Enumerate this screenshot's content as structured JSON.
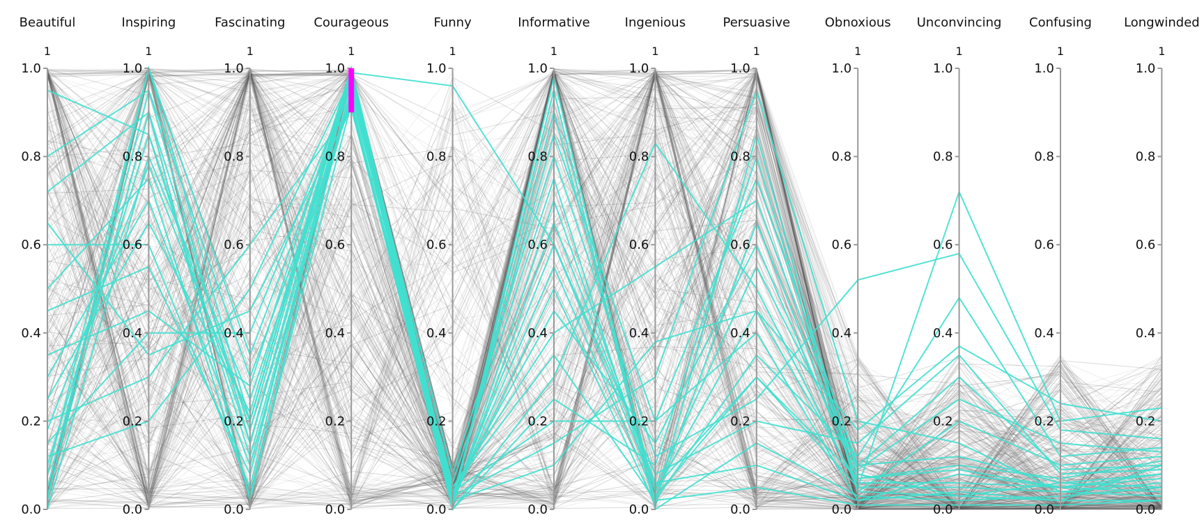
{
  "chart_data": {
    "type": "parallel-coordinates",
    "axes": [
      "Beautiful",
      "Inspiring",
      "Fascinating",
      "Courageous",
      "Funny",
      "Informative",
      "Ingenious",
      "Persuasive",
      "Obnoxious",
      "Unconvincing",
      "Confusing",
      "Longwinded"
    ],
    "axis_top_labels": [
      "1",
      "1",
      "1",
      "1",
      "1",
      "1",
      "1",
      "1",
      "1",
      "1",
      "1",
      "1"
    ],
    "ylim": [
      0,
      1
    ],
    "ticks": [
      0.0,
      0.2,
      0.4,
      0.6,
      0.8,
      1.0
    ],
    "tick_labels": [
      "0.0",
      "0.2",
      "0.4",
      "0.6",
      "0.8",
      "1.0"
    ],
    "brush": {
      "axis": "Courageous",
      "range": [
        0.9,
        1.0
      ],
      "color": "#ff00ff"
    },
    "colors": {
      "selected": "#40e0d0",
      "context": "#555555",
      "faded": "#bbbbbb",
      "axis": "#999999"
    },
    "series": [
      {
        "values": [
          0.02,
          1.0,
          0.2,
          1.0,
          0.02,
          0.55,
          0.03,
          0.3,
          0.05,
          0.05,
          0.04,
          0.06
        ]
      },
      {
        "values": [
          0.1,
          0.85,
          0.15,
          0.98,
          0.01,
          0.7,
          0.05,
          0.55,
          0.1,
          0.12,
          0.06,
          0.08
        ]
      },
      {
        "values": [
          0.3,
          0.7,
          0.1,
          0.95,
          0.05,
          0.35,
          0.02,
          0.65,
          0.08,
          0.03,
          0.02,
          0.1
        ]
      },
      {
        "values": [
          0.05,
          0.95,
          0.3,
          0.92,
          0.03,
          0.85,
          0.2,
          0.4,
          0.02,
          0.08,
          0.05,
          0.04
        ]
      },
      {
        "values": [
          0.6,
          0.6,
          0.05,
          1.0,
          0.0,
          0.25,
          0.1,
          0.8,
          0.04,
          0.2,
          0.1,
          0.12
        ]
      },
      {
        "values": [
          0.15,
          0.4,
          0.4,
          0.97,
          0.02,
          0.6,
          0.08,
          0.2,
          0.15,
          0.35,
          0.08,
          0.09
        ]
      },
      {
        "values": [
          0.0,
          0.8,
          0.25,
          0.93,
          0.01,
          0.95,
          0.0,
          0.15,
          0.03,
          0.02,
          0.03,
          0.05
        ]
      },
      {
        "values": [
          0.72,
          0.9,
          0.18,
          0.99,
          0.04,
          0.45,
          0.15,
          0.6,
          0.07,
          0.1,
          0.07,
          0.11
        ]
      },
      {
        "values": [
          0.2,
          0.3,
          0.6,
          0.91,
          0.06,
          0.75,
          0.02,
          0.35,
          0.12,
          0.48,
          0.12,
          0.14
        ]
      },
      {
        "values": [
          0.45,
          0.55,
          0.08,
          1.0,
          0.03,
          0.15,
          0.3,
          0.95,
          0.2,
          0.15,
          0.04,
          0.03
        ]
      },
      {
        "values": [
          0.08,
          1.0,
          0.35,
          0.96,
          0.02,
          0.9,
          0.04,
          0.45,
          0.06,
          0.06,
          0.05,
          0.07
        ]
      },
      {
        "values": [
          0.95,
          0.85,
          0.12,
          0.94,
          0.05,
          0.4,
          0.55,
          0.7,
          0.09,
          0.25,
          0.15,
          0.13
        ]
      },
      {
        "values": [
          0.25,
          0.65,
          0.22,
          1.0,
          0.01,
          0.65,
          0.06,
          0.1,
          0.02,
          0.04,
          0.02,
          0.02
        ]
      },
      {
        "values": [
          0.5,
          0.75,
          0.03,
          0.92,
          0.0,
          0.3,
          0.83,
          0.5,
          0.05,
          0.72,
          0.2,
          0.23
        ]
      },
      {
        "values": [
          0.12,
          0.2,
          0.5,
          0.98,
          0.08,
          0.8,
          0.12,
          0.25,
          0.52,
          0.58,
          0.18,
          0.16
        ]
      },
      {
        "values": [
          0.8,
          0.95,
          0.15,
          0.95,
          0.02,
          0.5,
          0.01,
          0.85,
          0.04,
          0.03,
          0.06,
          0.05
        ]
      },
      {
        "values": [
          0.35,
          0.45,
          0.28,
          1.0,
          0.04,
          0.2,
          0.2,
          0.75,
          0.1,
          0.3,
          0.09,
          0.1
        ]
      },
      {
        "values": [
          0.03,
          0.9,
          0.02,
          0.97,
          0.01,
          0.98,
          0.02,
          0.05,
          0.01,
          0.01,
          0.01,
          0.02
        ]
      },
      {
        "values": [
          0.65,
          0.35,
          0.45,
          0.91,
          0.02,
          0.1,
          0.38,
          0.45,
          0.18,
          0.37,
          0.24,
          0.2
        ]
      },
      {
        "values": [
          0.18,
          0.78,
          0.2,
          0.99,
          0.96,
          0.6,
          0.05,
          0.3,
          0.07,
          0.09,
          0.05,
          0.08
        ]
      }
    ]
  }
}
